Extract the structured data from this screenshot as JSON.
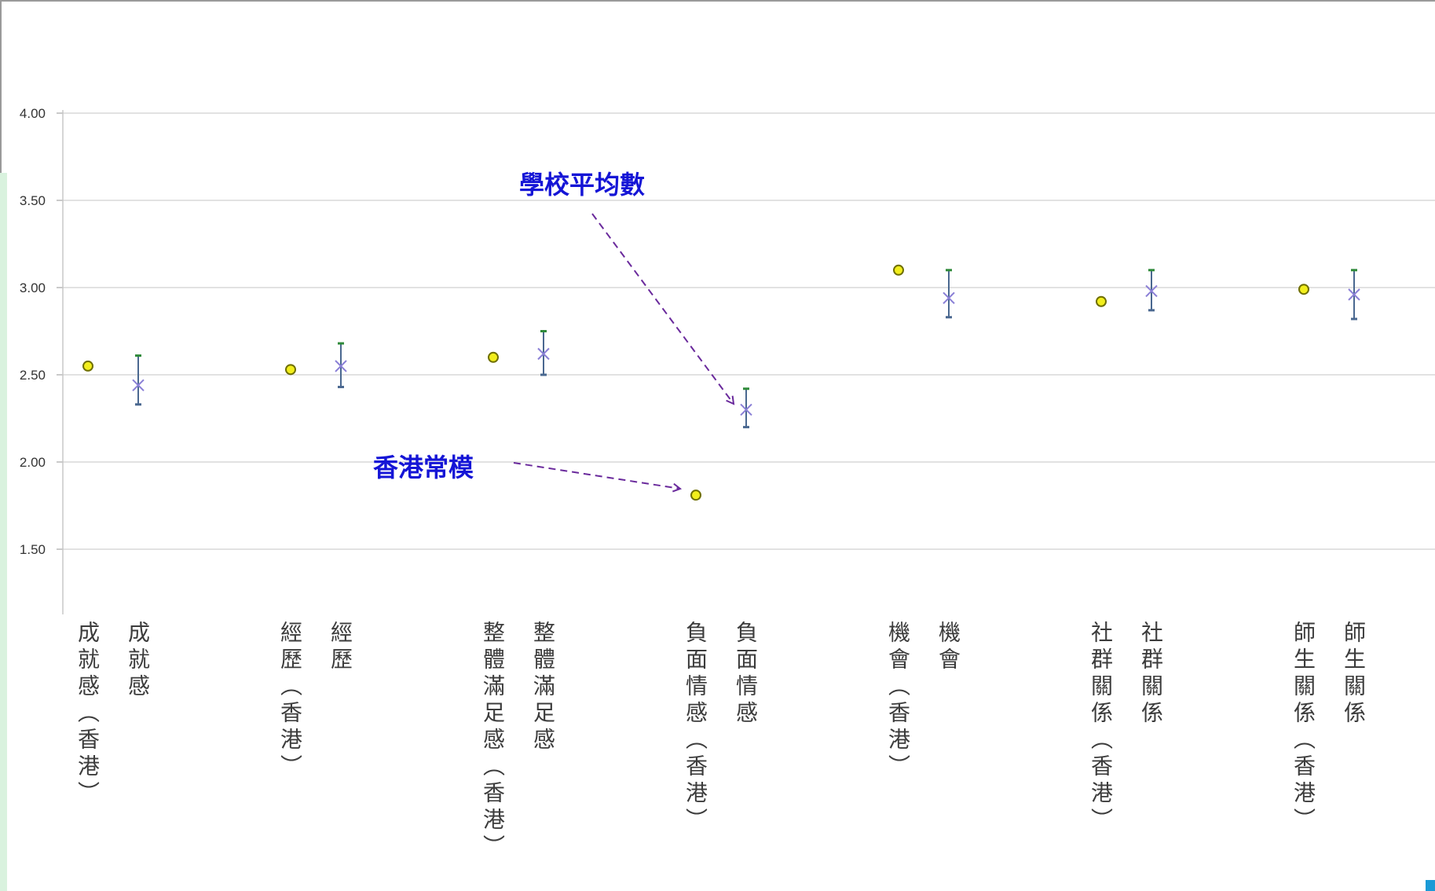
{
  "colors": {
    "hk_marker_fill": "#f2ee1c",
    "hk_marker_stroke": "#6f6f00",
    "school_marker": "#8a7fd6",
    "error_bar": "#4a6890",
    "error_cap_top": "#2f8a3a",
    "gridline": "#d9d9d9",
    "annotation_text": "#1515d6",
    "annotation_arrow": "#6a2a9c"
  },
  "chart_data": {
    "type": "scatter",
    "ylim": [
      1.2,
      4.0
    ],
    "yticks": [
      "4.00",
      "3.50",
      "3.00",
      "2.50",
      "2.00",
      "1.50"
    ],
    "grid": true,
    "categories": [
      {
        "hk_label": "成就感（香港）",
        "school_label": "成就感",
        "hk_value": 2.55,
        "school_mean": 2.44,
        "ci_low": 2.33,
        "ci_high": 2.61
      },
      {
        "hk_label": "經歷（香港）",
        "school_label": "經歷",
        "hk_value": 2.53,
        "school_mean": 2.55,
        "ci_low": 2.43,
        "ci_high": 2.68
      },
      {
        "hk_label": "整體滿足感（香港）",
        "school_label": "整體滿足感",
        "hk_value": 2.6,
        "school_mean": 2.62,
        "ci_low": 2.5,
        "ci_high": 2.75
      },
      {
        "hk_label": "負面情感（香港）",
        "school_label": "負面情感",
        "hk_value": 1.81,
        "school_mean": 2.3,
        "ci_low": 2.2,
        "ci_high": 2.42
      },
      {
        "hk_label": "機會（香港）",
        "school_label": "機會",
        "hk_value": 3.1,
        "school_mean": 2.94,
        "ci_low": 2.83,
        "ci_high": 3.1
      },
      {
        "hk_label": "社群關係（香港）",
        "school_label": "社群關係",
        "hk_value": 2.92,
        "school_mean": 2.98,
        "ci_low": 2.87,
        "ci_high": 3.1
      },
      {
        "hk_label": "師生關係（香港）",
        "school_label": "師生關係",
        "hk_value": 2.99,
        "school_mean": 2.96,
        "ci_low": 2.82,
        "ci_high": 3.1
      }
    ],
    "annotations": [
      {
        "text": "學校平均數",
        "target": "負面情感 school mean"
      },
      {
        "text": "香港常模",
        "target": "負面情感 (香港) value"
      }
    ]
  }
}
